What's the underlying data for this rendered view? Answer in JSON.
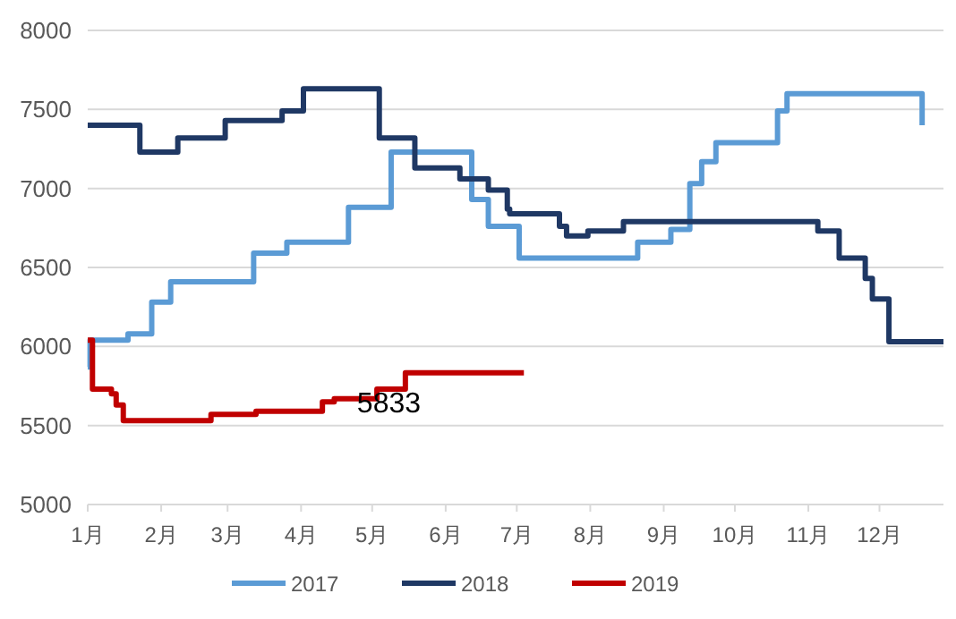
{
  "chart_data": {
    "type": "step",
    "annotations": [
      {
        "text": "5833",
        "x": "--05-15",
        "y": 5833
      }
    ],
    "xlim": [
      "--01-01",
      "--12-28"
    ],
    "xticks": [
      {
        "value": "--01-01",
        "label": "1月"
      },
      {
        "value": "--02-01",
        "label": "2月"
      },
      {
        "value": "--03-01",
        "label": "3月"
      },
      {
        "value": "--04-01",
        "label": "4月"
      },
      {
        "value": "--05-01",
        "label": "5月"
      },
      {
        "value": "--06-01",
        "label": "6月"
      },
      {
        "value": "--07-01",
        "label": "7月"
      },
      {
        "value": "--08-01",
        "label": "8月"
      },
      {
        "value": "--09-01",
        "label": "9月"
      },
      {
        "value": "--10-01",
        "label": "10月"
      },
      {
        "value": "--11-01",
        "label": "11月"
      },
      {
        "value": "--12-01",
        "label": "12月"
      }
    ],
    "ylim": [
      5000,
      8000
    ],
    "yticks": [
      5000,
      5500,
      6000,
      6500,
      7000,
      7500,
      8000
    ],
    "grid": "y",
    "legend": "bottom",
    "line_style": "solid",
    "marker": "none",
    "series": [
      {
        "name": "2017",
        "color": "#5b9bd5",
        "x": [
          "--01-01",
          "--01-02",
          "--01-18",
          "--01-28",
          "--02-05",
          "--03-12",
          "--03-26",
          "--04-21",
          "--05-09",
          "--06-12",
          "--06-19",
          "--07-02",
          "--08-21",
          "--09-04",
          "--09-12",
          "--09-17",
          "--09-23",
          "--10-19",
          "--10-23",
          "--12-19"
        ],
        "values": [
          5870,
          6040,
          6080,
          6280,
          6410,
          6590,
          6660,
          6880,
          7230,
          6930,
          6760,
          6560,
          6660,
          6740,
          7030,
          7170,
          7290,
          7490,
          7600,
          7400
        ]
      },
      {
        "name": "2018",
        "color": "#1f3864",
        "x": [
          "--01-01",
          "--01-23",
          "--02-08",
          "--02-28",
          "--03-24",
          "--04-02",
          "--05-04",
          "--05-19",
          "--06-07",
          "--06-19",
          "--06-27",
          "--06-28",
          "--07-19",
          "--07-22",
          "--07-31",
          "--08-15",
          "--11-05",
          "--11-14",
          "--11-25",
          "--11-28",
          "--12-05",
          "--12-28"
        ],
        "values": [
          7400,
          7230,
          7320,
          7430,
          7490,
          7630,
          7320,
          7130,
          7060,
          6990,
          6870,
          6840,
          6760,
          6700,
          6730,
          6790,
          6730,
          6560,
          6430,
          6300,
          6030,
          6030
        ]
      },
      {
        "name": "2019",
        "color": "#c00000",
        "x": [
          "--01-01",
          "--01-03",
          "--01-11",
          "--01-13",
          "--01-16",
          "--02-22",
          "--03-13",
          "--04-10",
          "--04-15",
          "--05-03",
          "--05-15",
          "--07-04"
        ],
        "values": [
          6040,
          5730,
          5700,
          5630,
          5530,
          5570,
          5590,
          5650,
          5670,
          5730,
          5833,
          5833
        ]
      }
    ]
  }
}
